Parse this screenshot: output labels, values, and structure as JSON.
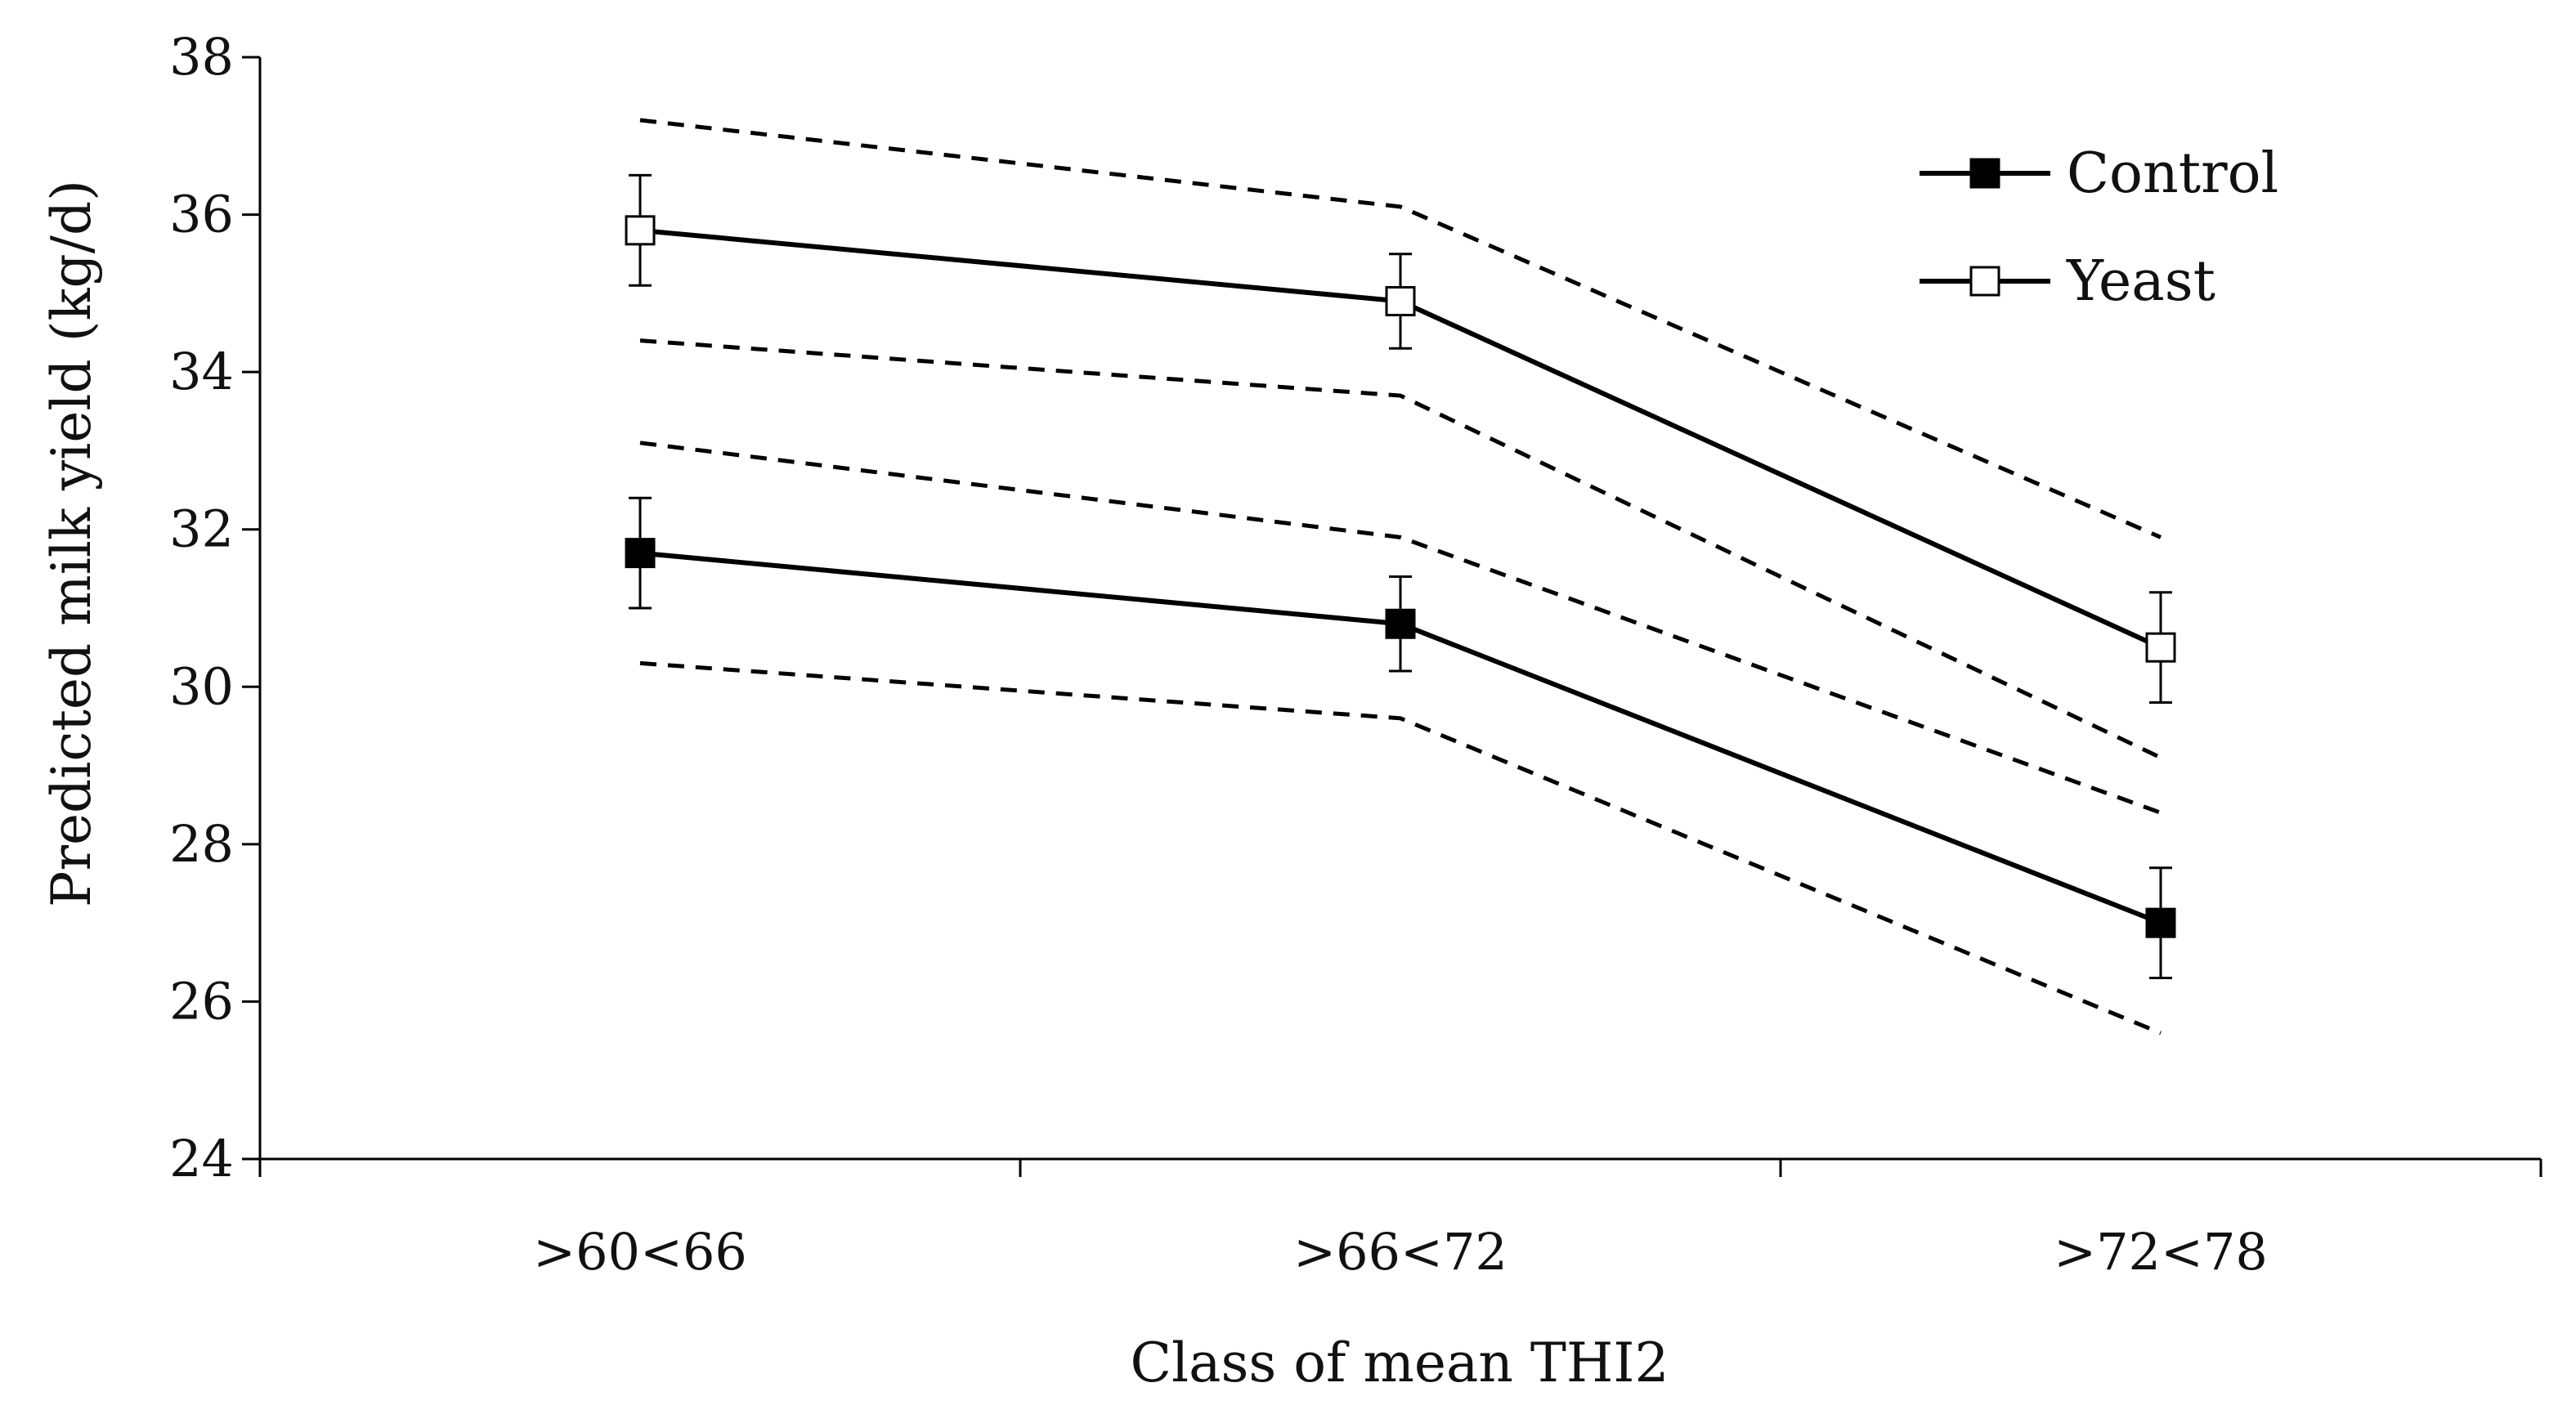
{
  "chart_data": {
    "type": "line",
    "title": "",
    "xlabel": "Class of mean THI2",
    "ylabel": "Predicted milk yield  (kg/d)",
    "categories": [
      ">60<66",
      ">66<72",
      ">72<78"
    ],
    "ylim": [
      24,
      38
    ],
    "yticks": [
      24,
      26,
      28,
      30,
      32,
      34,
      36,
      38
    ],
    "grid": false,
    "legend_position": "top-right",
    "series": [
      {
        "name": "Control",
        "marker": "filled-square",
        "values": [
          31.7,
          30.8,
          27.0
        ],
        "error": [
          0.7,
          0.6,
          0.7
        ],
        "confidence_band": {
          "upper": [
            33.1,
            31.9,
            28.4
          ],
          "lower": [
            30.3,
            29.6,
            25.6
          ]
        }
      },
      {
        "name": "Yeast",
        "marker": "open-square",
        "values": [
          35.8,
          34.9,
          30.5
        ],
        "error": [
          0.7,
          0.6,
          0.7
        ],
        "confidence_band": {
          "upper": [
            37.2,
            36.1,
            31.9
          ],
          "lower": [
            34.4,
            33.7,
            29.1
          ]
        }
      }
    ],
    "colors": {
      "line": "#000000",
      "background": "#ffffff"
    }
  }
}
